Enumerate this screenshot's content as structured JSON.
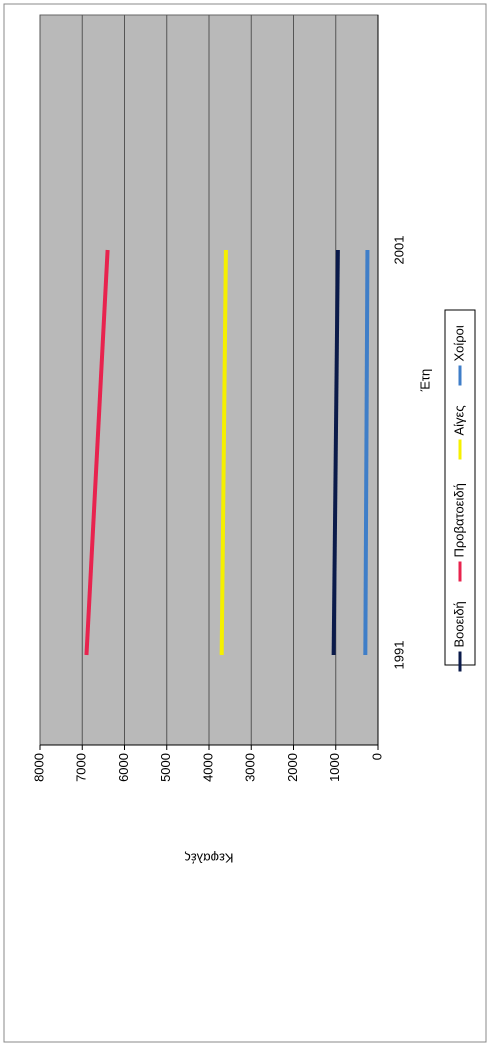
{
  "chart_data": {
    "type": "line",
    "y_label": "Κεφαλές",
    "x_label": "Έτη",
    "categories": [
      "1991",
      "2001"
    ],
    "series": [
      {
        "name": "Βοοειδή",
        "color": "#0a1a4a",
        "values": [
          1050,
          950
        ]
      },
      {
        "name": "Προβατοειδή",
        "color": "#e8234e",
        "values": [
          6900,
          6400
        ]
      },
      {
        "name": "Αίγες",
        "color": "#f5f000",
        "values": [
          3700,
          3600
        ]
      },
      {
        "name": "Χοίροι",
        "color": "#3f7ec8",
        "values": [
          300,
          250
        ]
      }
    ],
    "ylim": [
      0,
      8000
    ],
    "yticks": [
      0,
      1000,
      2000,
      3000,
      4000,
      5000,
      6000,
      7000,
      8000
    ],
    "grid": true,
    "legend": "bottom"
  }
}
